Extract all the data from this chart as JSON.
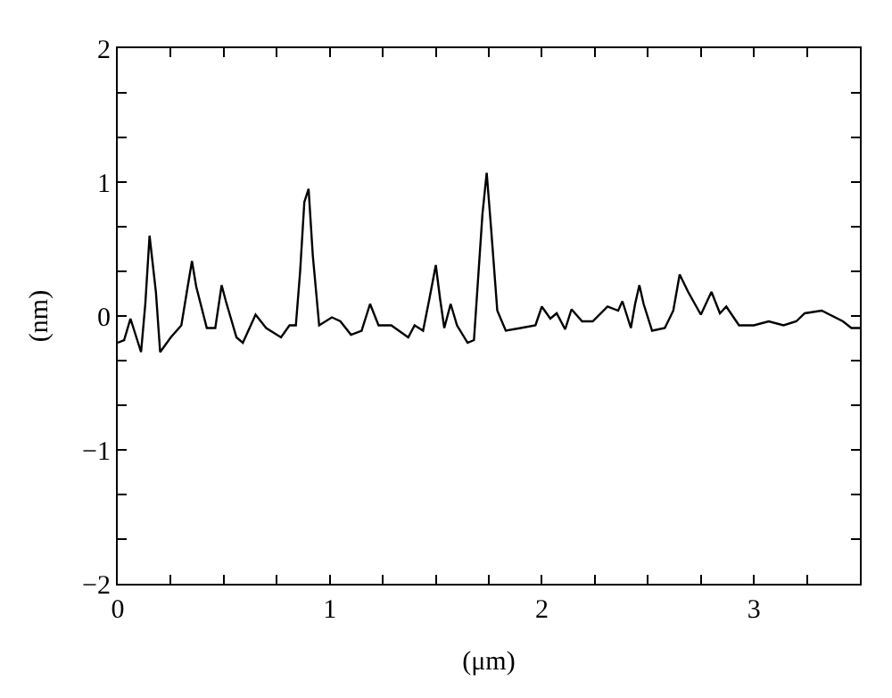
{
  "chart_data": {
    "type": "line",
    "xlabel": "(μm)",
    "ylabel": "(nm)",
    "xlim": [
      0,
      3.5
    ],
    "ylim": [
      -2,
      2
    ],
    "xticks": [
      0,
      {
        "value": 0.25,
        "label": null
      },
      {
        "value": 0.5,
        "label": null
      },
      {
        "value": 0.75,
        "label": null
      },
      1,
      {
        "value": 1.25,
        "label": null
      },
      {
        "value": 1.5,
        "label": null
      },
      {
        "value": 1.75,
        "label": null
      },
      2,
      {
        "value": 2.25,
        "label": null
      },
      {
        "value": 2.5,
        "label": null
      },
      {
        "value": 2.75,
        "label": null
      },
      3,
      {
        "value": 3.25,
        "label": null
      }
    ],
    "yticks": [
      -2,
      {
        "value": -1.667,
        "label": null
      },
      {
        "value": -1.333,
        "label": null
      },
      -1,
      {
        "value": -0.667,
        "label": null
      },
      {
        "value": -0.333,
        "label": null
      },
      0,
      {
        "value": 0.333,
        "label": null
      },
      {
        "value": 0.667,
        "label": null
      },
      1,
      {
        "value": 1.333,
        "label": null
      },
      {
        "value": 1.667,
        "label": null
      },
      2
    ],
    "marker": "none",
    "line_style": "solid",
    "series": [
      {
        "color": "#000000",
        "x": [
          0,
          0.03,
          0.06,
          0.11,
          0.13,
          0.15,
          0.18,
          0.2,
          0.25,
          0.3,
          0.33,
          0.35,
          0.37,
          0.42,
          0.46,
          0.49,
          0.51,
          0.56,
          0.59,
          0.65,
          0.7,
          0.77,
          0.81,
          0.84,
          0.86,
          0.88,
          0.9,
          0.92,
          0.95,
          1.01,
          1.05,
          1.1,
          1.15,
          1.19,
          1.23,
          1.29,
          1.37,
          1.4,
          1.44,
          1.47,
          1.5,
          1.52,
          1.54,
          1.57,
          1.6,
          1.65,
          1.68,
          1.72,
          1.74,
          1.76,
          1.79,
          1.83,
          1.9,
          1.97,
          2.0,
          2.04,
          2.07,
          2.11,
          2.14,
          2.19,
          2.24,
          2.31,
          2.36,
          2.38,
          2.42,
          2.44,
          2.46,
          2.48,
          2.52,
          2.58,
          2.62,
          2.65,
          2.69,
          2.75,
          2.8,
          2.84,
          2.87,
          2.93,
          3.0,
          3.07,
          3.14,
          3.2,
          3.24,
          3.32,
          3.42,
          3.46,
          3.5
        ],
        "values": [
          -0.2,
          -0.18,
          -0.02,
          -0.27,
          0.09,
          0.6,
          0.18,
          -0.27,
          -0.16,
          -0.07,
          0.22,
          0.41,
          0.22,
          -0.09,
          -0.09,
          0.23,
          0.11,
          -0.16,
          -0.2,
          0.01,
          -0.09,
          -0.16,
          -0.07,
          -0.07,
          0.33,
          0.85,
          0.95,
          0.45,
          -0.07,
          -0.01,
          -0.04,
          -0.14,
          -0.11,
          0.09,
          -0.07,
          -0.07,
          -0.16,
          -0.07,
          -0.11,
          0.13,
          0.38,
          0.13,
          -0.09,
          0.09,
          -0.07,
          -0.2,
          -0.18,
          0.76,
          1.07,
          0.67,
          0.04,
          -0.11,
          -0.09,
          -0.07,
          0.07,
          -0.02,
          0.02,
          -0.1,
          0.05,
          -0.04,
          -0.04,
          0.07,
          0.04,
          0.11,
          -0.09,
          0.09,
          0.23,
          0.09,
          -0.11,
          -0.09,
          0.04,
          0.31,
          0.18,
          0.01,
          0.18,
          0.02,
          0.07,
          -0.07,
          -0.07,
          -0.04,
          -0.07,
          -0.04,
          0.02,
          0.04,
          -0.04,
          -0.09,
          -0.09
        ]
      }
    ]
  }
}
